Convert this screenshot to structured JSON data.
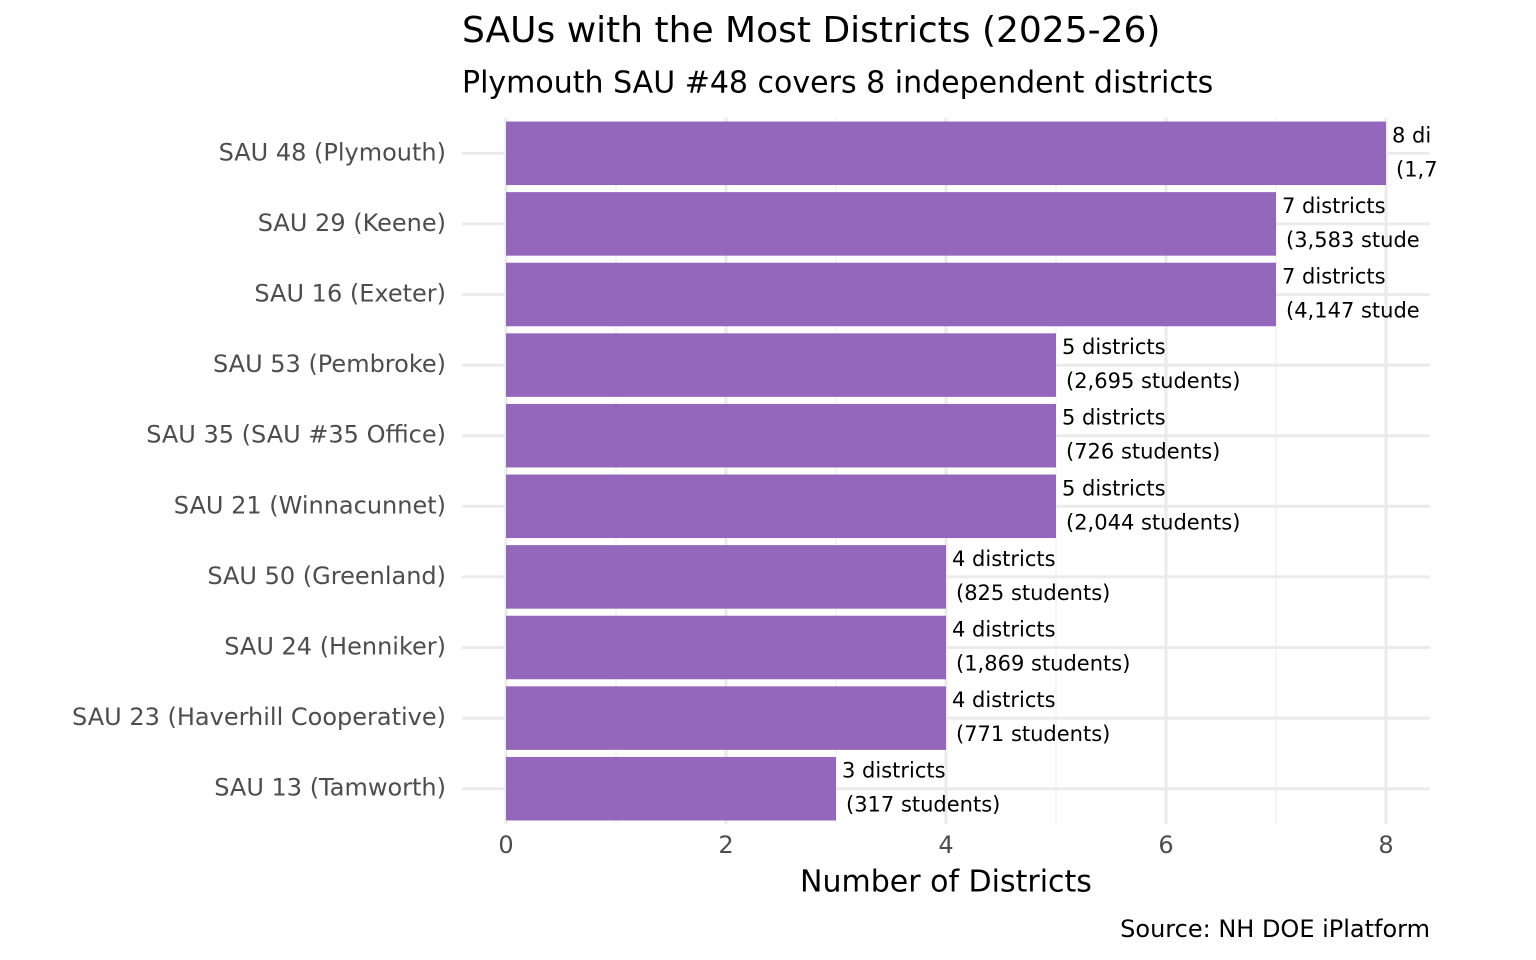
{
  "chart_data": {
    "type": "bar",
    "orientation": "horizontal",
    "title": "SAUs with the Most Districts (2025-26)",
    "subtitle": "Plymouth SAU #48 covers 8 independent districts",
    "x_label": "Number of Districts",
    "caption": "Source: NH DOE iPlatform",
    "categories": [
      "SAU 48 (Plymouth)",
      "SAU 29 (Keene)",
      "SAU 16 (Exeter)",
      "SAU 53 (Pembroke)",
      "SAU 35 (SAU #35 Office)",
      "SAU 21 (Winnacunnet)",
      "SAU 50 (Greenland)",
      "SAU 24 (Henniker)",
      "SAU 23 (Haverhill Cooperative)",
      "SAU 13 (Tamworth)"
    ],
    "values": [
      8,
      7,
      7,
      5,
      5,
      5,
      4,
      4,
      4,
      3
    ],
    "value_labels": [
      "8 di",
      "7 districts",
      "7 districts",
      "5 districts",
      "5 districts",
      "5 districts",
      "4 districts",
      "4 districts",
      "4 districts",
      "3 districts"
    ],
    "student_labels": [
      "(1,7",
      "(3,583 stude",
      "(4,147 stude",
      "(2,695 students)",
      "(726 students)",
      "(2,044 students)",
      "(825 students)",
      "(1,869 students)",
      "(771 students)",
      "(317 students)"
    ],
    "color": "#9467bd",
    "xlim": [
      -0.4,
      8.4
    ],
    "xticks": [
      0,
      2,
      4,
      6,
      8
    ],
    "minor_xticks": [
      1,
      3,
      5,
      7
    ],
    "grid": true
  }
}
